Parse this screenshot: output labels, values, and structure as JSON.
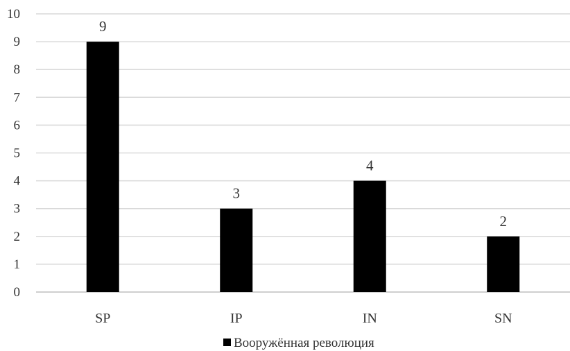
{
  "chart_data": {
    "type": "bar",
    "categories": [
      "SP",
      "IP",
      "IN",
      "SN"
    ],
    "series": [
      {
        "name": "Вооружённая революция",
        "values": [
          9,
          3,
          4,
          2
        ],
        "color": "#000000"
      }
    ],
    "data_labels": [
      "9",
      "3",
      "4",
      "2"
    ],
    "y_ticks": [
      "0",
      "1",
      "2",
      "3",
      "4",
      "5",
      "6",
      "7",
      "8",
      "9",
      "10"
    ],
    "ylim": [
      0,
      10
    ],
    "grid": true,
    "legend_position": "bottom",
    "title": "",
    "xlabel": "",
    "ylabel": ""
  }
}
